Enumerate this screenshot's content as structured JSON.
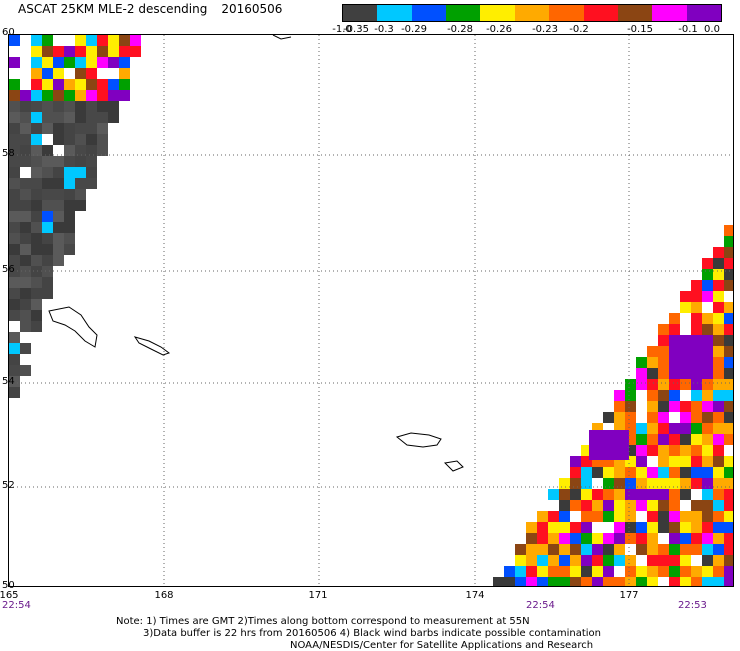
{
  "title": "ASCAT 25KM MLE-2 descending",
  "date": "20160506",
  "legend": {
    "colors": [
      "#404040",
      "#00c8ff",
      "#0050ff",
      "#00a000",
      "#ffee00",
      "#ffaa00",
      "#ff6600",
      "#ff1020",
      "#8b4513",
      "#ff00ff",
      "#8000c0"
    ],
    "ticks": [
      "-1.0",
      "-0.35",
      "-0.3",
      "-0.29",
      "-0.28",
      "-0.26",
      "-0.23",
      "-0.2",
      "-0.15",
      "-0.1",
      "0.0"
    ]
  },
  "axes": {
    "lat_labels": [
      "60",
      "58",
      "56",
      "54",
      "52",
      "50"
    ],
    "lon_labels": [
      "165",
      "168",
      "171",
      "174",
      "177"
    ]
  },
  "times": [
    "22:54",
    "22:54",
    "22:53"
  ],
  "notes": [
    "Note: 1) Times are GMT 2)Times along bottom correspond to measurement at 55N",
    "3)Data buffer is 22 hrs from 20160506 4) Black wind barbs indicate possible contamination",
    "NOAA/NESDIS/Center for Satellite Applications and Research"
  ]
}
